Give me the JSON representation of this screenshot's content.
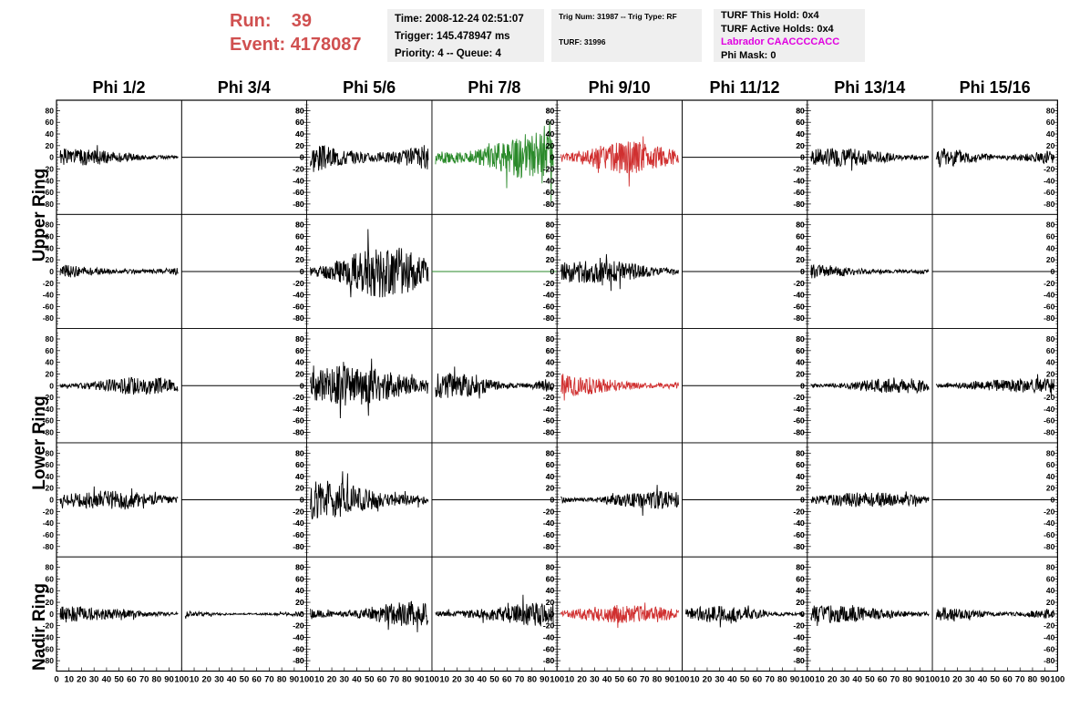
{
  "header": {
    "run_label": "Run:",
    "run_value": "39",
    "event_label": "Event:",
    "event_value": "4178087",
    "time_text": "Time: 2008-12-24 02:51:07",
    "trigger_text": "Trigger: 145.478947 ms",
    "priority_text": "Priority: 4 -- Queue: 4",
    "trig_num_text": "Trig Num: 31987 -- Trig Type: RF",
    "turf_text": "TURF: 31996",
    "turf_hold_text": "TURF This Hold: 0x4",
    "turf_active_text": "TURF Active Holds: 0x4",
    "labrador_text": "Labrador CAACCCCACC",
    "phi_mask_text": "Phi Mask: 0"
  },
  "columns": [
    "Phi 1/2",
    "Phi 3/4",
    "Phi 5/6",
    "Phi 7/8",
    "Phi 9/10",
    "Phi 11/12",
    "Phi 13/14",
    "Phi 15/16"
  ],
  "ring_labels": [
    "Upper Ring",
    "Lower Ring",
    "Nadir Ring"
  ],
  "colors": {
    "run_text": "#d05050",
    "labrador": "#e000e0",
    "black": "#000000",
    "green": "#2a8a2a",
    "red": "#d03030"
  },
  "chart_data": {
    "type": "line",
    "description_rows": 5,
    "ylim": [
      -90,
      90
    ],
    "xlim": [
      0,
      100
    ],
    "y_ticks": [
      80,
      60,
      40,
      20,
      0,
      -20,
      -40,
      -60,
      -80
    ],
    "x_tick_labels": [
      "0",
      "10",
      "20",
      "30",
      "40",
      "50",
      "60",
      "70",
      "80",
      "90",
      "100"
    ],
    "panels": [
      [
        {
          "c": "black",
          "a": 14,
          "s": 1,
          "side": "L"
        },
        {
          "c": "black",
          "a": 0,
          "s": 2,
          "side": "R"
        },
        {
          "c": "black",
          "a": 42,
          "s": 3,
          "side": "L"
        },
        {
          "c": "green",
          "a": 45,
          "s": 4,
          "side": "R"
        },
        {
          "c": "red",
          "a": 28,
          "s": 5,
          "side": "L"
        },
        {
          "c": "black",
          "a": 0,
          "s": 6,
          "side": "R"
        },
        {
          "c": "black",
          "a": 16,
          "s": 7,
          "side": "L"
        },
        {
          "c": "black",
          "a": 18,
          "s": 8,
          "side": "R"
        }
      ],
      [
        {
          "c": "black",
          "a": 16,
          "s": 9,
          "side": "L"
        },
        {
          "c": "black",
          "a": 0,
          "s": 10,
          "side": "R"
        },
        {
          "c": "black",
          "a": 45,
          "s": 11,
          "side": "L"
        },
        {
          "c": "green",
          "a": 0,
          "s": 12,
          "side": "R"
        },
        {
          "c": "black",
          "a": 20,
          "s": 13,
          "side": "L"
        },
        {
          "c": "black",
          "a": 0,
          "s": 14,
          "side": "R"
        },
        {
          "c": "black",
          "a": 14,
          "s": 15,
          "side": "L"
        },
        {
          "c": "black",
          "a": 0,
          "s": 16,
          "side": "R"
        }
      ],
      [
        {
          "c": "black",
          "a": 16,
          "s": 17,
          "side": "L"
        },
        {
          "c": "black",
          "a": 0,
          "s": 18,
          "side": "R"
        },
        {
          "c": "black",
          "a": 35,
          "s": 19,
          "side": "L"
        },
        {
          "c": "black",
          "a": 22,
          "s": 20,
          "side": "R"
        },
        {
          "c": "red",
          "a": 22,
          "s": 21,
          "side": "L"
        },
        {
          "c": "black",
          "a": 0,
          "s": 22,
          "side": "R"
        },
        {
          "c": "black",
          "a": 14,
          "s": 23,
          "side": "L"
        },
        {
          "c": "black",
          "a": 12,
          "s": 24,
          "side": "R"
        }
      ],
      [
        {
          "c": "black",
          "a": 16,
          "s": 25,
          "side": "L"
        },
        {
          "c": "black",
          "a": 0,
          "s": 26,
          "side": "R"
        },
        {
          "c": "black",
          "a": 38,
          "s": 27,
          "side": "L"
        },
        {
          "c": "black",
          "a": 0,
          "s": 28,
          "side": "R"
        },
        {
          "c": "black",
          "a": 16,
          "s": 29,
          "side": "L"
        },
        {
          "c": "black",
          "a": 0,
          "s": 30,
          "side": "R"
        },
        {
          "c": "black",
          "a": 13,
          "s": 31,
          "side": "L"
        },
        {
          "c": "black",
          "a": 0,
          "s": 32,
          "side": "R"
        }
      ],
      [
        {
          "c": "black",
          "a": 14,
          "s": 33,
          "side": "L"
        },
        {
          "c": "black",
          "a": 6,
          "s": 34,
          "side": "R"
        },
        {
          "c": "black",
          "a": 22,
          "s": 35,
          "side": "L"
        },
        {
          "c": "black",
          "a": 22,
          "s": 36,
          "side": "R"
        },
        {
          "c": "red",
          "a": 16,
          "s": 37,
          "side": "L"
        },
        {
          "c": "black",
          "a": 14,
          "s": 38,
          "side": "R"
        },
        {
          "c": "black",
          "a": 15,
          "s": 39,
          "side": "L"
        },
        {
          "c": "black",
          "a": 15,
          "s": 40,
          "side": "R"
        }
      ]
    ]
  }
}
